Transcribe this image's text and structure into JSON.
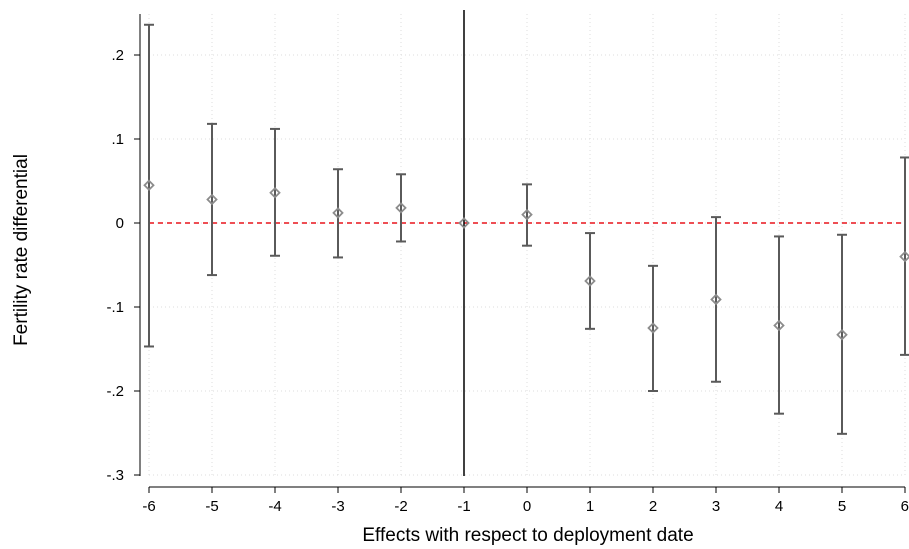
{
  "chart_data": {
    "type": "scatter",
    "variant": "coefficient-plot-with-confidence-intervals",
    "xlabel": "Effects with respect to deployment date",
    "ylabel": "Fertility rate differential",
    "x_ticks": [
      "-6",
      "-5",
      "-4",
      "-3",
      "-2",
      "-1",
      "0",
      "1",
      "2",
      "3",
      "4",
      "5",
      "6"
    ],
    "y_ticks": [
      {
        "value": 0.2,
        "label": ".2"
      },
      {
        "value": 0.1,
        "label": ".1"
      },
      {
        "value": 0,
        "label": "0"
      },
      {
        "value": -0.1,
        "label": "-.1"
      },
      {
        "value": -0.2,
        "label": "-.2"
      },
      {
        "value": -0.3,
        "label": "-.3"
      }
    ],
    "xlim": [
      -6,
      6
    ],
    "ylim": [
      -0.3,
      0.25
    ],
    "grid": true,
    "reference_lines": {
      "horizontal_y": 0,
      "vertical_x": -1
    },
    "points": [
      {
        "x": -6,
        "estimate": 0.045,
        "ci_low": -0.147,
        "ci_high": 0.236
      },
      {
        "x": -5,
        "estimate": 0.028,
        "ci_low": -0.062,
        "ci_high": 0.118
      },
      {
        "x": -4,
        "estimate": 0.036,
        "ci_low": -0.039,
        "ci_high": 0.112
      },
      {
        "x": -3,
        "estimate": 0.012,
        "ci_low": -0.041,
        "ci_high": 0.064
      },
      {
        "x": -2,
        "estimate": 0.018,
        "ci_low": -0.022,
        "ci_high": 0.058
      },
      {
        "x": -1,
        "estimate": 0.0,
        "ci_low": 0.0,
        "ci_high": 0.0
      },
      {
        "x": 0,
        "estimate": 0.01,
        "ci_low": -0.027,
        "ci_high": 0.046
      },
      {
        "x": 1,
        "estimate": -0.069,
        "ci_low": -0.126,
        "ci_high": -0.012
      },
      {
        "x": 2,
        "estimate": -0.125,
        "ci_low": -0.2,
        "ci_high": -0.051
      },
      {
        "x": 3,
        "estimate": -0.091,
        "ci_low": -0.189,
        "ci_high": 0.007
      },
      {
        "x": 4,
        "estimate": -0.122,
        "ci_low": -0.227,
        "ci_high": -0.016
      },
      {
        "x": 5,
        "estimate": -0.133,
        "ci_low": -0.251,
        "ci_high": -0.014
      },
      {
        "x": 6,
        "estimate": -0.04,
        "ci_low": -0.157,
        "ci_high": 0.078
      }
    ],
    "colors": {
      "marker": "#8c8c8c",
      "ci_bar": "#5a5a5a",
      "zero_line": "#e8141c",
      "event_line": "#000000",
      "grid": "#dcdcdc",
      "axis": "#000000"
    }
  }
}
